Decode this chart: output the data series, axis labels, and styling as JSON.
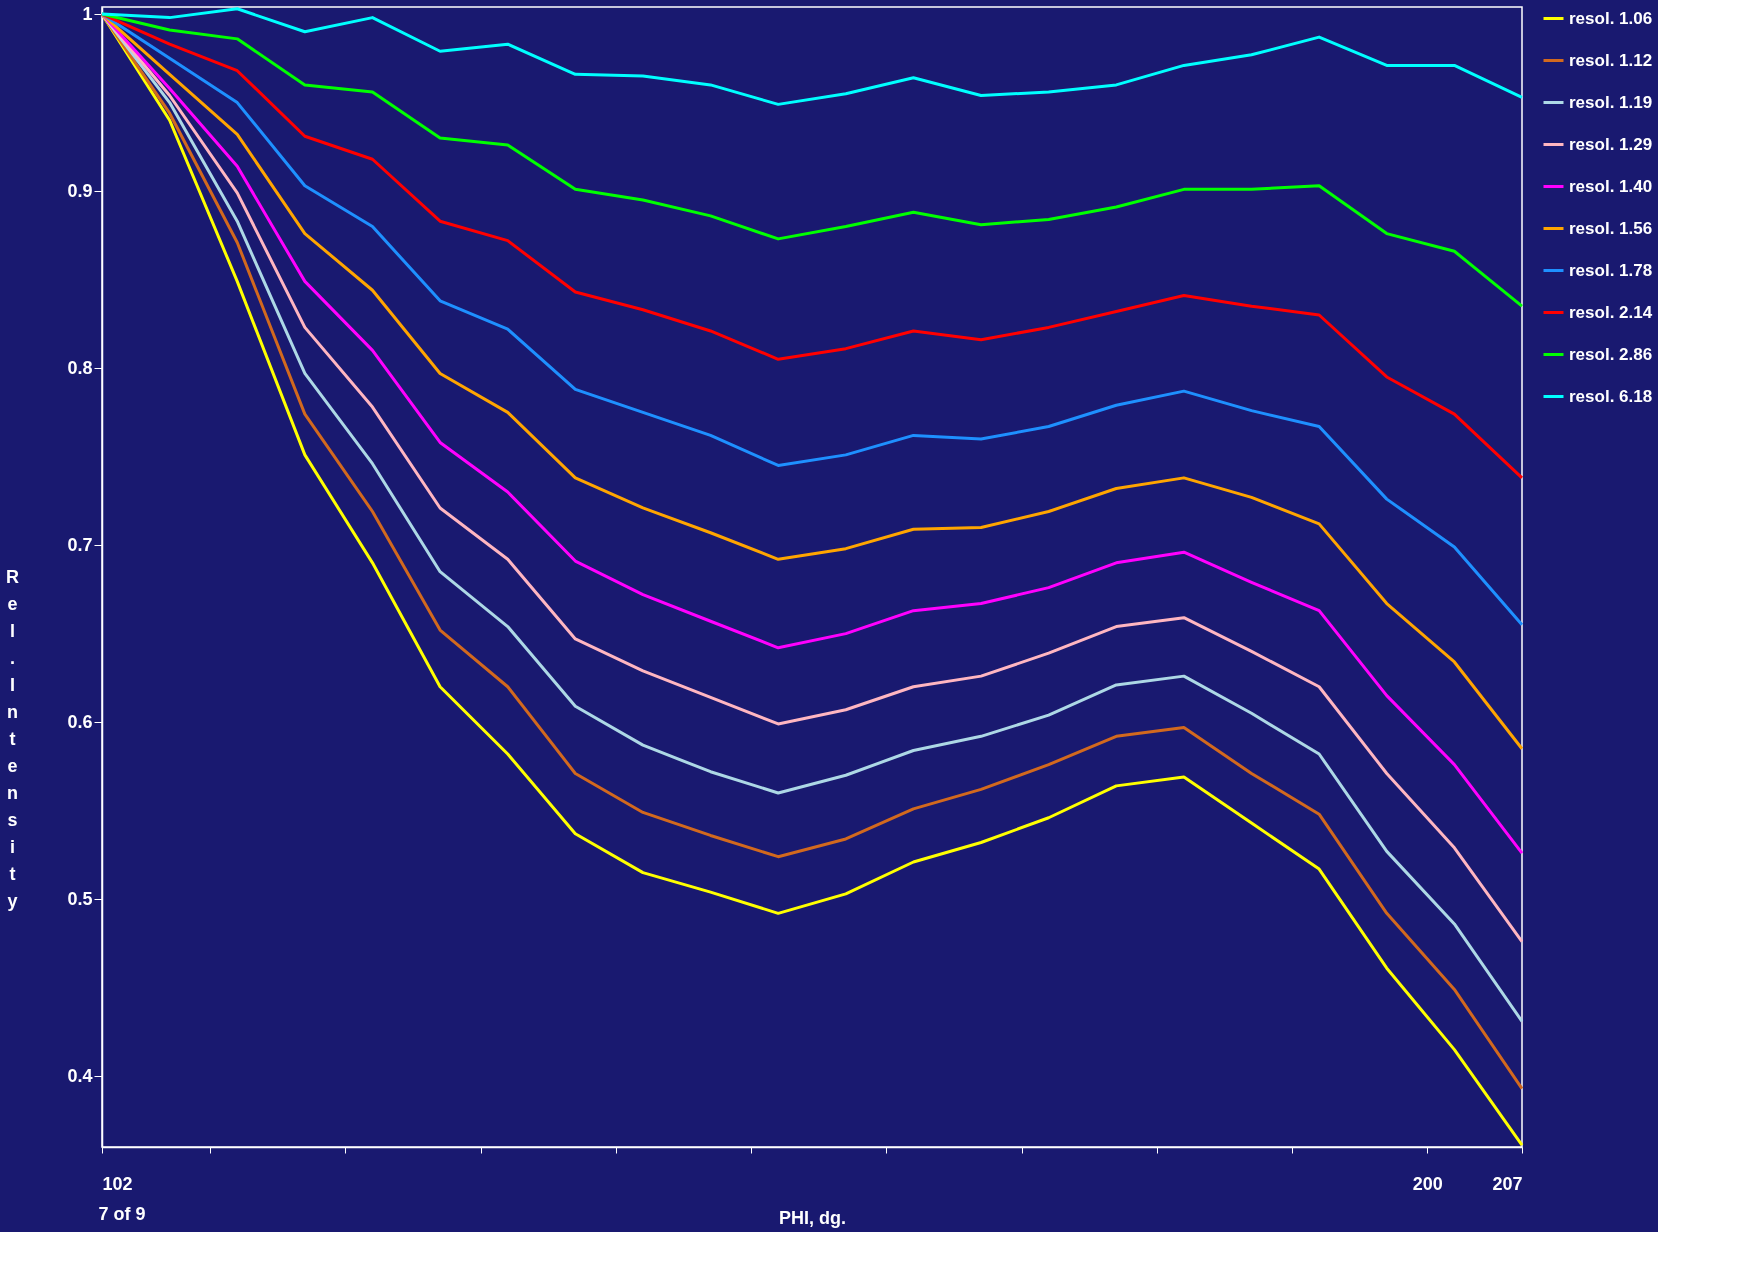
{
  "chart_data": {
    "type": "line",
    "xlabel": "PHI, dg.",
    "ylabel": "Rel. Intensity",
    "x": [
      102,
      107,
      112,
      117,
      122,
      127,
      132,
      137,
      142,
      147,
      152,
      157,
      162,
      167,
      172,
      177,
      182,
      187,
      192,
      197,
      202,
      207
    ],
    "xlim": [
      102,
      207
    ],
    "xticks": [
      102,
      {
        "value": 110,
        "label": null
      },
      {
        "value": 120,
        "label": null
      },
      {
        "value": 130,
        "label": null
      },
      {
        "value": 140,
        "label": null
      },
      {
        "value": 150,
        "label": null
      },
      {
        "value": 160,
        "label": null
      },
      {
        "value": 170,
        "label": null
      },
      {
        "value": 180,
        "label": null
      },
      {
        "value": 190,
        "label": null
      },
      200,
      207
    ],
    "ylim": [
      0.36,
      1.004
    ],
    "yticks": [
      0.4,
      0.5,
      0.6,
      0.7,
      0.8,
      0.9,
      1
    ],
    "grid": false,
    "legend": "right",
    "marker": "none",
    "line_style": "solid",
    "annotations": [
      "7 of 9"
    ],
    "series": [
      {
        "name": "resol. 1.06",
        "color": "#ffff00",
        "values": [
          1,
          0.94,
          0.849,
          0.751,
          0.69,
          0.62,
          0.582,
          0.537,
          0.515,
          0.504,
          0.492,
          0.503,
          0.521,
          0.532,
          0.546,
          0.564,
          0.569,
          0.543,
          0.517,
          0.461,
          0.415,
          0.361
        ]
      },
      {
        "name": "resol. 1.12",
        "color": "#d2691e",
        "values": [
          1,
          0.944,
          0.871,
          0.774,
          0.719,
          0.652,
          0.62,
          0.571,
          0.549,
          0.536,
          0.524,
          0.534,
          0.551,
          0.562,
          0.576,
          0.592,
          0.597,
          0.571,
          0.548,
          0.492,
          0.449,
          0.393
        ]
      },
      {
        "name": "resol. 1.19",
        "color": "#add8e6",
        "values": [
          1,
          0.95,
          0.883,
          0.797,
          0.746,
          0.685,
          0.654,
          0.609,
          0.587,
          0.572,
          0.56,
          0.57,
          0.584,
          0.592,
          0.604,
          0.621,
          0.626,
          0.605,
          0.582,
          0.527,
          0.486,
          0.431
        ]
      },
      {
        "name": "resol. 1.29",
        "color": "#ffb6c1",
        "values": [
          1,
          0.954,
          0.899,
          0.823,
          0.778,
          0.721,
          0.692,
          0.647,
          0.629,
          0.614,
          0.599,
          0.607,
          0.62,
          0.626,
          0.639,
          0.654,
          0.659,
          0.64,
          0.62,
          0.571,
          0.529,
          0.476
        ]
      },
      {
        "name": "resol. 1.40",
        "color": "#ff00ff",
        "values": [
          1,
          0.958,
          0.914,
          0.849,
          0.81,
          0.758,
          0.73,
          0.691,
          0.672,
          0.657,
          0.642,
          0.65,
          0.663,
          0.667,
          0.676,
          0.69,
          0.696,
          0.679,
          0.663,
          0.615,
          0.576,
          0.526
        ]
      },
      {
        "name": "resol. 1.56",
        "color": "#ffa500",
        "values": [
          1,
          0.966,
          0.932,
          0.876,
          0.844,
          0.797,
          0.775,
          0.738,
          0.721,
          0.707,
          0.692,
          0.698,
          0.709,
          0.71,
          0.719,
          0.732,
          0.738,
          0.727,
          0.712,
          0.667,
          0.634,
          0.585
        ]
      },
      {
        "name": "resol. 1.78",
        "color": "#1e90ff",
        "values": [
          1,
          0.975,
          0.95,
          0.903,
          0.88,
          0.838,
          0.822,
          0.788,
          0.775,
          0.762,
          0.745,
          0.751,
          0.762,
          0.76,
          0.767,
          0.779,
          0.787,
          0.776,
          0.767,
          0.726,
          0.699,
          0.655
        ]
      },
      {
        "name": "resol. 2.14",
        "color": "#ff0000",
        "values": [
          1,
          0.983,
          0.968,
          0.931,
          0.918,
          0.883,
          0.872,
          0.843,
          0.833,
          0.821,
          0.805,
          0.811,
          0.821,
          0.816,
          0.823,
          0.832,
          0.841,
          0.835,
          0.83,
          0.795,
          0.774,
          0.738
        ]
      },
      {
        "name": "resol. 2.86",
        "color": "#00ff00",
        "values": [
          1,
          0.991,
          0.986,
          0.96,
          0.956,
          0.93,
          0.926,
          0.901,
          0.895,
          0.886,
          0.873,
          0.88,
          0.888,
          0.881,
          0.884,
          0.891,
          0.901,
          0.901,
          0.903,
          0.876,
          0.866,
          0.835
        ]
      },
      {
        "name": "resol. 6.18",
        "color": "#00ffff",
        "values": [
          1,
          0.998,
          1.003,
          0.99,
          0.998,
          0.979,
          0.983,
          0.966,
          0.965,
          0.96,
          0.949,
          0.955,
          0.964,
          0.954,
          0.956,
          0.96,
          0.971,
          0.977,
          0.987,
          0.971,
          0.971,
          0.953
        ]
      }
    ]
  }
}
